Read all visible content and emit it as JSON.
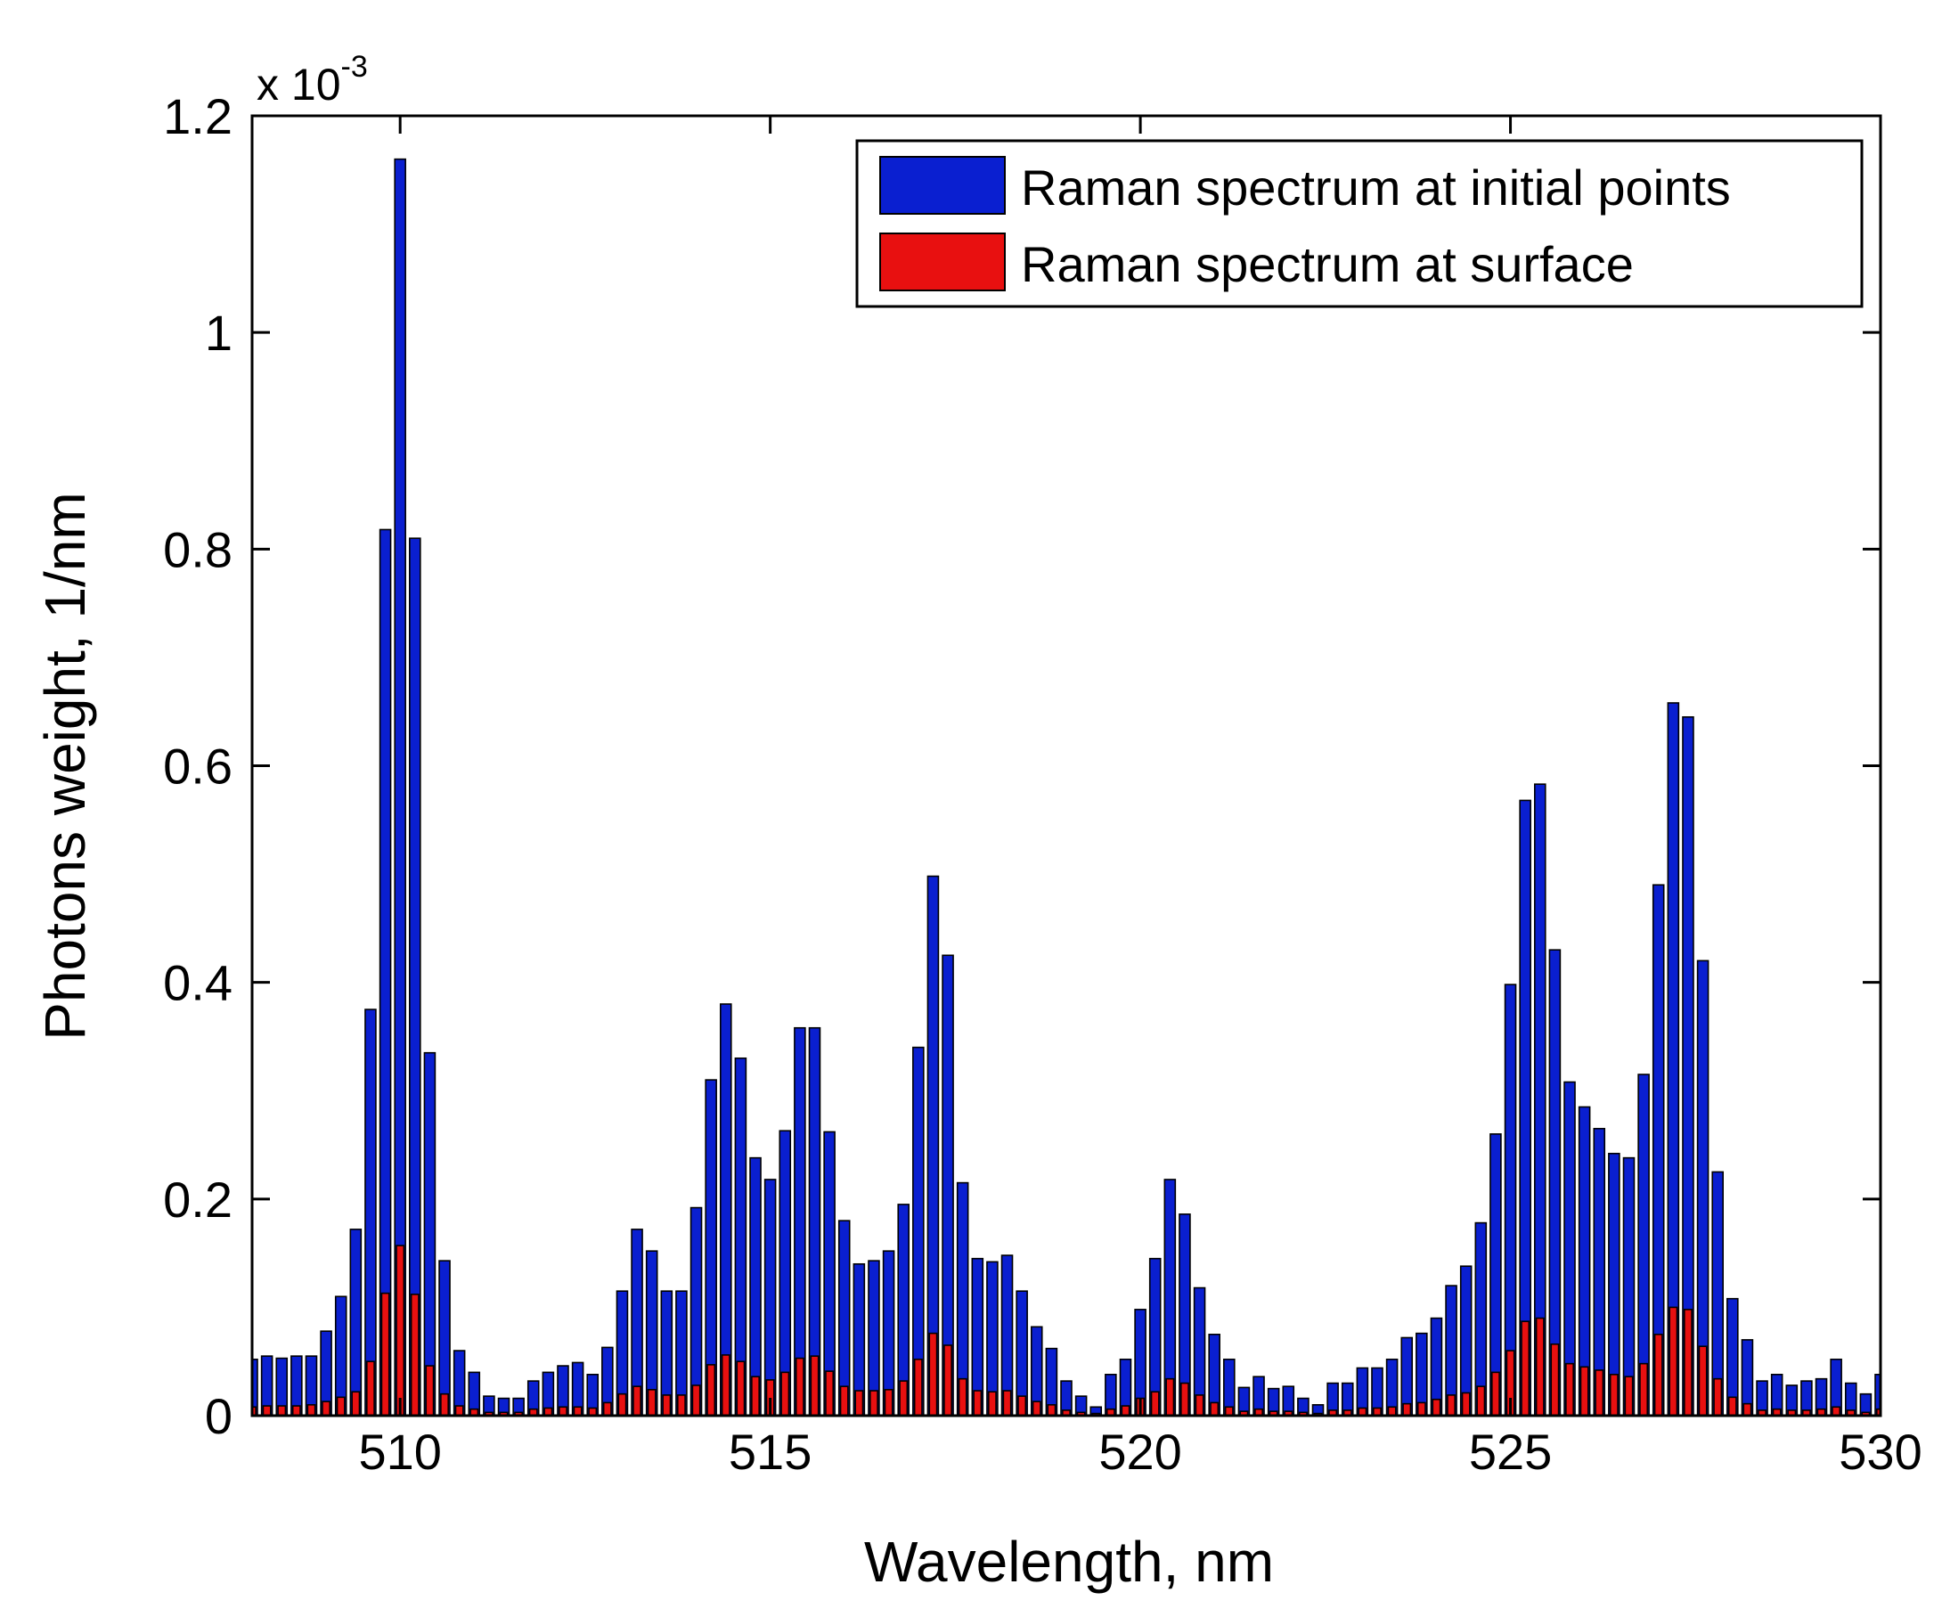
{
  "chart_data": {
    "type": "bar",
    "title": "",
    "xlabel": "Wavelength, nm",
    "ylabel": "Photons weight, 1/nm",
    "y_multiplier_base": "x 10",
    "y_multiplier_exp": "-3",
    "xlim": [
      508,
      530
    ],
    "ylim": [
      0,
      1.2
    ],
    "bin_start": 508.0,
    "bin_step": 0.2,
    "xticks": [
      510,
      515,
      520,
      525,
      530
    ],
    "xtick_labels": [
      "510",
      "515",
      "520",
      "525",
      "530"
    ],
    "yticks": [
      0,
      0.2,
      0.4,
      0.6,
      0.8,
      1,
      1.2
    ],
    "ytick_labels": [
      "0",
      "0.2",
      "0.4",
      "0.6",
      "0.8",
      "1",
      "1.2"
    ],
    "legend_position": "top-right",
    "series": [
      {
        "name": "Raman spectrum at initial points",
        "color": "#0a1fd0",
        "values": [
          0.052,
          0.055,
          0.053,
          0.055,
          0.055,
          0.078,
          0.11,
          0.172,
          0.375,
          0.818,
          1.16,
          0.81,
          0.335,
          0.143,
          0.06,
          0.04,
          0.018,
          0.016,
          0.016,
          0.032,
          0.04,
          0.046,
          0.049,
          0.038,
          0.063,
          0.115,
          0.172,
          0.152,
          0.115,
          0.115,
          0.192,
          0.31,
          0.38,
          0.33,
          0.238,
          0.218,
          0.263,
          0.358,
          0.358,
          0.262,
          0.18,
          0.14,
          0.143,
          0.152,
          0.195,
          0.34,
          0.498,
          0.425,
          0.215,
          0.145,
          0.142,
          0.148,
          0.115,
          0.082,
          0.062,
          0.032,
          0.018,
          0.008,
          0.038,
          0.052,
          0.098,
          0.145,
          0.218,
          0.186,
          0.118,
          0.075,
          0.052,
          0.026,
          0.036,
          0.025,
          0.027,
          0.016,
          0.01,
          0.03,
          0.03,
          0.044,
          0.044,
          0.052,
          0.072,
          0.076,
          0.09,
          0.12,
          0.138,
          0.178,
          0.26,
          0.398,
          0.568,
          0.583,
          0.43,
          0.308,
          0.285,
          0.265,
          0.242,
          0.238,
          0.315,
          0.49,
          0.658,
          0.645,
          0.42,
          0.225,
          0.108,
          0.07,
          0.032,
          0.038,
          0.028,
          0.032,
          0.034,
          0.052,
          0.03,
          0.02,
          0.038
        ]
      },
      {
        "name": "Raman spectrum at surface",
        "color": "#e81010",
        "values": [
          0.008,
          0.009,
          0.009,
          0.009,
          0.01,
          0.013,
          0.017,
          0.022,
          0.05,
          0.113,
          0.157,
          0.112,
          0.046,
          0.02,
          0.009,
          0.006,
          0.003,
          0.003,
          0.003,
          0.006,
          0.007,
          0.008,
          0.008,
          0.007,
          0.012,
          0.02,
          0.027,
          0.024,
          0.019,
          0.019,
          0.028,
          0.047,
          0.056,
          0.05,
          0.036,
          0.033,
          0.04,
          0.053,
          0.055,
          0.041,
          0.027,
          0.023,
          0.023,
          0.024,
          0.032,
          0.052,
          0.076,
          0.065,
          0.034,
          0.023,
          0.022,
          0.023,
          0.018,
          0.013,
          0.01,
          0.005,
          0.003,
          0.002,
          0.006,
          0.009,
          0.016,
          0.022,
          0.034,
          0.03,
          0.019,
          0.012,
          0.008,
          0.004,
          0.006,
          0.004,
          0.004,
          0.003,
          0.002,
          0.005,
          0.005,
          0.007,
          0.007,
          0.008,
          0.011,
          0.012,
          0.015,
          0.019,
          0.021,
          0.027,
          0.04,
          0.06,
          0.087,
          0.09,
          0.066,
          0.048,
          0.045,
          0.042,
          0.038,
          0.036,
          0.048,
          0.075,
          0.1,
          0.098,
          0.064,
          0.034,
          0.017,
          0.011,
          0.005,
          0.006,
          0.005,
          0.005,
          0.006,
          0.008,
          0.005,
          0.003,
          0.006
        ]
      }
    ]
  }
}
